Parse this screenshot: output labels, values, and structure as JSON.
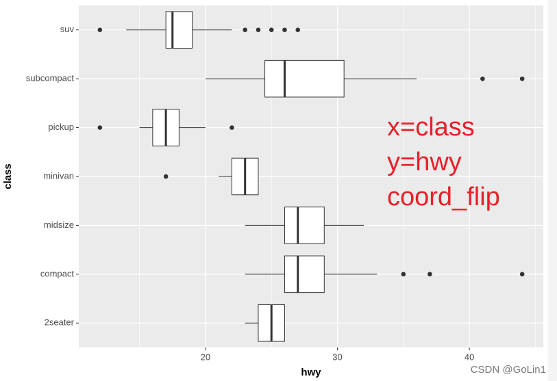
{
  "chart_data": {
    "type": "boxplot",
    "x_label": "hwy",
    "y_label": "class",
    "categories": [
      "2seater",
      "compact",
      "midsize",
      "minivan",
      "pickup",
      "subcompact",
      "suv"
    ],
    "boxes": [
      {
        "whisker_low": 23,
        "q1": 24,
        "median": 25,
        "q3": 26,
        "whisker_high": 26,
        "outliers": []
      },
      {
        "whisker_low": 23,
        "q1": 26,
        "median": 27,
        "q3": 29,
        "whisker_high": 33,
        "outliers": [
          35,
          37,
          44
        ]
      },
      {
        "whisker_low": 23,
        "q1": 26,
        "median": 27,
        "q3": 29,
        "whisker_high": 32,
        "outliers": []
      },
      {
        "whisker_low": 21,
        "q1": 22,
        "median": 23,
        "q3": 24,
        "whisker_high": 24,
        "outliers": [
          17
        ]
      },
      {
        "whisker_low": 15,
        "q1": 16,
        "median": 17,
        "q3": 18,
        "whisker_high": 20,
        "outliers": [
          12,
          22
        ]
      },
      {
        "whisker_low": 20,
        "q1": 24.5,
        "median": 26,
        "q3": 30.5,
        "whisker_high": 36,
        "outliers": [
          41,
          44
        ]
      },
      {
        "whisker_low": 14,
        "q1": 17,
        "median": 17.5,
        "q3": 19,
        "whisker_high": 22,
        "outliers": [
          12,
          23,
          24,
          25,
          26,
          27
        ]
      }
    ],
    "xlim": [
      10.4,
      45.6
    ],
    "xticks": [
      20,
      30,
      40
    ],
    "minor_xticks": [
      15,
      25,
      35,
      45
    ],
    "grid": true,
    "panel_color": "#ebebeb",
    "box_fill": "#ffffff",
    "line_color": "#333333",
    "annotation": [
      "x=class",
      "y=hwy",
      "coord_flip"
    ],
    "annotation_color": "#e8202a"
  },
  "watermark": "CSDN @GoLin1"
}
